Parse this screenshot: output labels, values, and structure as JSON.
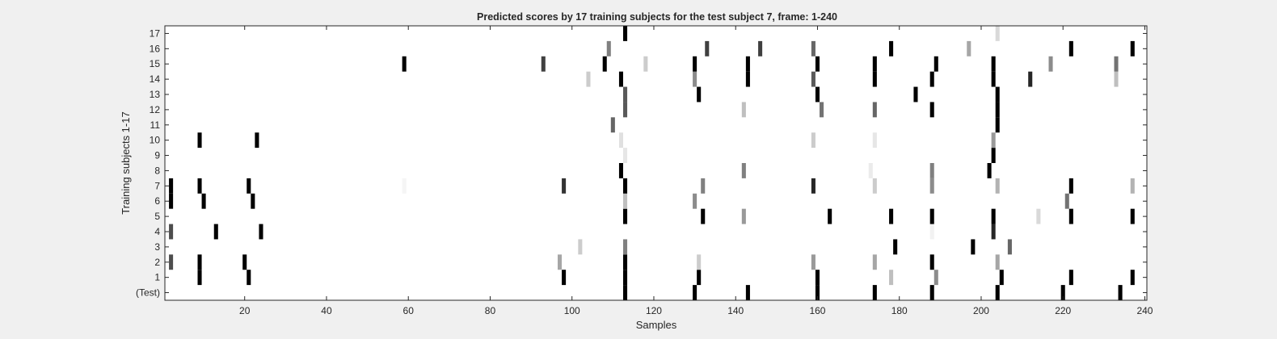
{
  "chart_data": {
    "type": "heatmap",
    "title": "Predicted scores by 17 training subjects for the test subject 7, frame: 1-240",
    "xlabel": "Samples",
    "ylabel": "Training subjects 1-17",
    "xlim": [
      1,
      240
    ],
    "x_ticks": [
      20,
      40,
      60,
      80,
      100,
      120,
      140,
      160,
      180,
      200,
      220,
      240
    ],
    "rows": [
      "(Test)",
      "1",
      "2",
      "3",
      "4",
      "5",
      "6",
      "7",
      "8",
      "9",
      "10",
      "11",
      "12",
      "13",
      "14",
      "15",
      "16",
      "17"
    ],
    "value_range": [
      0,
      1
    ],
    "colormap": "gray (1 = black, 0 = white)",
    "grid": false,
    "cells": [
      {
        "row": "(Test)",
        "x": 113,
        "v": 1.0
      },
      {
        "row": "(Test)",
        "x": 130,
        "v": 1.0
      },
      {
        "row": "(Test)",
        "x": 143,
        "v": 1.0
      },
      {
        "row": "(Test)",
        "x": 160,
        "v": 1.0
      },
      {
        "row": "(Test)",
        "x": 174,
        "v": 1.0
      },
      {
        "row": "(Test)",
        "x": 188,
        "v": 1.0
      },
      {
        "row": "(Test)",
        "x": 204,
        "v": 1.0
      },
      {
        "row": "(Test)",
        "x": 220,
        "v": 1.0
      },
      {
        "row": "(Test)",
        "x": 234,
        "v": 1.0
      },
      {
        "row": "1",
        "x": 9,
        "v": 1.0
      },
      {
        "row": "1",
        "x": 21,
        "v": 1.0
      },
      {
        "row": "1",
        "x": 98,
        "v": 1.0
      },
      {
        "row": "1",
        "x": 113,
        "v": 1.0
      },
      {
        "row": "1",
        "x": 131,
        "v": 1.0
      },
      {
        "row": "1",
        "x": 160,
        "v": 1.0
      },
      {
        "row": "1",
        "x": 178,
        "v": 0.25
      },
      {
        "row": "1",
        "x": 189,
        "v": 0.45
      },
      {
        "row": "1",
        "x": 205,
        "v": 1.0
      },
      {
        "row": "1",
        "x": 222,
        "v": 1.0
      },
      {
        "row": "1",
        "x": 237,
        "v": 1.0
      },
      {
        "row": "2",
        "x": 2,
        "v": 0.7
      },
      {
        "row": "2",
        "x": 9,
        "v": 1.0
      },
      {
        "row": "2",
        "x": 20,
        "v": 1.0
      },
      {
        "row": "2",
        "x": 97,
        "v": 0.35
      },
      {
        "row": "2",
        "x": 113,
        "v": 1.0
      },
      {
        "row": "2",
        "x": 131,
        "v": 0.2
      },
      {
        "row": "2",
        "x": 159,
        "v": 0.4
      },
      {
        "row": "2",
        "x": 174,
        "v": 0.35
      },
      {
        "row": "2",
        "x": 188,
        "v": 1.0
      },
      {
        "row": "2",
        "x": 204,
        "v": 0.35
      },
      {
        "row": "3",
        "x": 102,
        "v": 0.2
      },
      {
        "row": "3",
        "x": 113,
        "v": 0.5
      },
      {
        "row": "3",
        "x": 179,
        "v": 1.0
      },
      {
        "row": "3",
        "x": 198,
        "v": 1.0
      },
      {
        "row": "3",
        "x": 207,
        "v": 0.6
      },
      {
        "row": "4",
        "x": 2,
        "v": 0.7
      },
      {
        "row": "4",
        "x": 13,
        "v": 1.0
      },
      {
        "row": "4",
        "x": 24,
        "v": 1.0
      },
      {
        "row": "4",
        "x": 188,
        "v": 0.05
      },
      {
        "row": "4",
        "x": 203,
        "v": 0.85
      },
      {
        "row": "5",
        "x": 113,
        "v": 1.0
      },
      {
        "row": "5",
        "x": 132,
        "v": 1.0
      },
      {
        "row": "5",
        "x": 142,
        "v": 0.4
      },
      {
        "row": "5",
        "x": 163,
        "v": 1.0
      },
      {
        "row": "5",
        "x": 178,
        "v": 1.0
      },
      {
        "row": "5",
        "x": 188,
        "v": 1.0
      },
      {
        "row": "5",
        "x": 203,
        "v": 1.0
      },
      {
        "row": "5",
        "x": 214,
        "v": 0.15
      },
      {
        "row": "5",
        "x": 222,
        "v": 1.0
      },
      {
        "row": "5",
        "x": 237,
        "v": 1.0
      },
      {
        "row": "6",
        "x": 2,
        "v": 1.0
      },
      {
        "row": "6",
        "x": 10,
        "v": 1.0
      },
      {
        "row": "6",
        "x": 22,
        "v": 1.0
      },
      {
        "row": "6",
        "x": 113,
        "v": 0.25
      },
      {
        "row": "6",
        "x": 130,
        "v": 0.45
      },
      {
        "row": "6",
        "x": 221,
        "v": 0.55
      },
      {
        "row": "7",
        "x": 2,
        "v": 1.0
      },
      {
        "row": "7",
        "x": 9,
        "v": 1.0
      },
      {
        "row": "7",
        "x": 21,
        "v": 1.0
      },
      {
        "row": "7",
        "x": 59,
        "v": 0.04
      },
      {
        "row": "7",
        "x": 98,
        "v": 0.8
      },
      {
        "row": "7",
        "x": 113,
        "v": 1.0
      },
      {
        "row": "7",
        "x": 132,
        "v": 0.5
      },
      {
        "row": "7",
        "x": 159,
        "v": 0.85
      },
      {
        "row": "7",
        "x": 174,
        "v": 0.2
      },
      {
        "row": "7",
        "x": 188,
        "v": 0.45
      },
      {
        "row": "7",
        "x": 204,
        "v": 0.3
      },
      {
        "row": "7",
        "x": 222,
        "v": 1.0
      },
      {
        "row": "7",
        "x": 237,
        "v": 0.3
      },
      {
        "row": "8",
        "x": 112,
        "v": 1.0
      },
      {
        "row": "8",
        "x": 142,
        "v": 0.5
      },
      {
        "row": "8",
        "x": 173,
        "v": 0.08
      },
      {
        "row": "8",
        "x": 188,
        "v": 0.5
      },
      {
        "row": "8",
        "x": 202,
        "v": 1.0
      },
      {
        "row": "9",
        "x": 113,
        "v": 0.1
      },
      {
        "row": "9",
        "x": 203,
        "v": 1.0
      },
      {
        "row": "10",
        "x": 9,
        "v": 1.0
      },
      {
        "row": "10",
        "x": 23,
        "v": 1.0
      },
      {
        "row": "10",
        "x": 112,
        "v": 0.12
      },
      {
        "row": "10",
        "x": 159,
        "v": 0.2
      },
      {
        "row": "10",
        "x": 174,
        "v": 0.1
      },
      {
        "row": "10",
        "x": 203,
        "v": 0.4
      },
      {
        "row": "11",
        "x": 110,
        "v": 0.6
      },
      {
        "row": "11",
        "x": 204,
        "v": 1.0
      },
      {
        "row": "12",
        "x": 113,
        "v": 0.65
      },
      {
        "row": "12",
        "x": 142,
        "v": 0.25
      },
      {
        "row": "12",
        "x": 161,
        "v": 0.55
      },
      {
        "row": "12",
        "x": 174,
        "v": 0.6
      },
      {
        "row": "12",
        "x": 188,
        "v": 1.0
      },
      {
        "row": "12",
        "x": 204,
        "v": 1.0
      },
      {
        "row": "13",
        "x": 113,
        "v": 0.65
      },
      {
        "row": "13",
        "x": 131,
        "v": 1.0
      },
      {
        "row": "13",
        "x": 160,
        "v": 1.0
      },
      {
        "row": "13",
        "x": 184,
        "v": 1.0
      },
      {
        "row": "13",
        "x": 204,
        "v": 1.0
      },
      {
        "row": "14",
        "x": 104,
        "v": 0.2
      },
      {
        "row": "14",
        "x": 112,
        "v": 1.0
      },
      {
        "row": "14",
        "x": 130,
        "v": 0.45
      },
      {
        "row": "14",
        "x": 143,
        "v": 1.0
      },
      {
        "row": "14",
        "x": 159,
        "v": 0.65
      },
      {
        "row": "14",
        "x": 174,
        "v": 1.0
      },
      {
        "row": "14",
        "x": 188,
        "v": 1.0
      },
      {
        "row": "14",
        "x": 203,
        "v": 1.0
      },
      {
        "row": "14",
        "x": 212,
        "v": 0.85
      },
      {
        "row": "14",
        "x": 233,
        "v": 0.25
      },
      {
        "row": "15",
        "x": 59,
        "v": 1.0
      },
      {
        "row": "15",
        "x": 93,
        "v": 0.75
      },
      {
        "row": "15",
        "x": 108,
        "v": 1.0
      },
      {
        "row": "15",
        "x": 118,
        "v": 0.2
      },
      {
        "row": "15",
        "x": 130,
        "v": 1.0
      },
      {
        "row": "15",
        "x": 143,
        "v": 1.0
      },
      {
        "row": "15",
        "x": 160,
        "v": 1.0
      },
      {
        "row": "15",
        "x": 174,
        "v": 1.0
      },
      {
        "row": "15",
        "x": 189,
        "v": 1.0
      },
      {
        "row": "15",
        "x": 203,
        "v": 1.0
      },
      {
        "row": "15",
        "x": 217,
        "v": 0.45
      },
      {
        "row": "15",
        "x": 233,
        "v": 0.55
      },
      {
        "row": "16",
        "x": 109,
        "v": 0.5
      },
      {
        "row": "16",
        "x": 133,
        "v": 0.75
      },
      {
        "row": "16",
        "x": 146,
        "v": 0.75
      },
      {
        "row": "16",
        "x": 159,
        "v": 0.6
      },
      {
        "row": "16",
        "x": 178,
        "v": 1.0
      },
      {
        "row": "16",
        "x": 197,
        "v": 0.35
      },
      {
        "row": "16",
        "x": 222,
        "v": 1.0
      },
      {
        "row": "16",
        "x": 237,
        "v": 1.0
      },
      {
        "row": "17",
        "x": 113,
        "v": 1.0
      },
      {
        "row": "17",
        "x": 204,
        "v": 0.15
      }
    ]
  }
}
